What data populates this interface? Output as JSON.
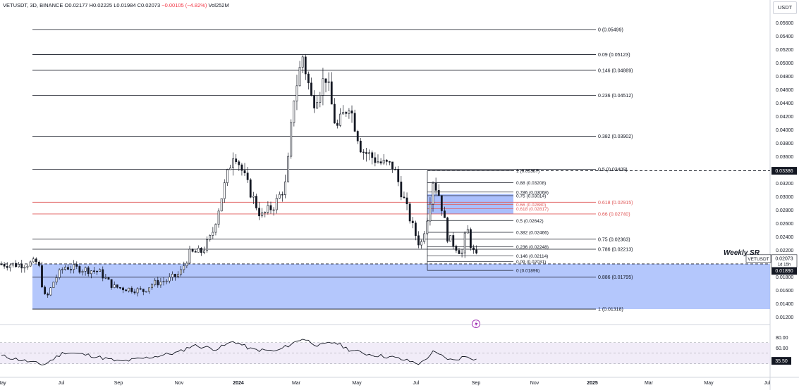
{
  "header": {
    "symbol": "VETUSDT, 3D, BINANCE",
    "open": "O0.02177",
    "high": "H0.02225",
    "low": "L0.01984",
    "close": "C0.02073",
    "change": "−0.00105 (−4.82%)",
    "volume": "Vol252M"
  },
  "axis_unit": "USDT",
  "colors": {
    "up": "#131722",
    "down": "#131722",
    "zone": "#9bb4fb",
    "fib_red": "#e05a5a",
    "rsi_line": "#131722",
    "rsi_band": "#ede7f6"
  },
  "icons": {
    "flash": "lightning-icon"
  },
  "chart_data": [
    {
      "type": "candlestick",
      "title": "",
      "x_ticks": [
        "May",
        "Jul",
        "Sep",
        "Nov",
        "2024",
        "Mar",
        "May",
        "Jul",
        "Sep",
        "Nov",
        "2025",
        "Mar",
        "May",
        "Jul"
      ],
      "y_ticks": [
        "0.05600",
        "0.05400",
        "0.05200",
        "0.05000",
        "0.04800",
        "0.04600",
        "0.04400",
        "0.04200",
        "0.04000",
        "0.03800",
        "0.03600",
        "0.03200",
        "0.03000",
        "0.02800",
        "0.02600",
        "0.02400",
        "0.02200",
        "0.02000",
        "0.01800",
        "0.01600",
        "0.01400",
        "0.01200"
      ],
      "ylim": [
        0.0115,
        0.0575
      ],
      "price_tags": {
        "last": {
          "label": "VETUSDT",
          "value": "0.02073",
          "countdown": "1d 15h"
        },
        "markers": [
          "0.03386",
          "0.01993",
          "0.01890"
        ]
      },
      "annotation_text": "Weekly SR",
      "series": [
        {
          "name": "price",
          "anchors": [
            [
              "2023-05-01",
              0.0199
            ],
            [
              "2023-05-20",
              0.0198
            ],
            [
              "2023-06-08",
              0.0202
            ],
            [
              "2023-06-12",
              0.0169
            ],
            [
              "2023-06-16",
              0.0145
            ],
            [
              "2023-06-25",
              0.0176
            ],
            [
              "2023-07-05",
              0.0195
            ],
            [
              "2023-07-22",
              0.0192
            ],
            [
              "2023-08-10",
              0.0188
            ],
            [
              "2023-08-25",
              0.0165
            ],
            [
              "2023-09-10",
              0.0162
            ],
            [
              "2023-09-25",
              0.0159
            ],
            [
              "2023-10-05",
              0.017
            ],
            [
              "2023-10-20",
              0.0175
            ],
            [
              "2023-11-02",
              0.0185
            ],
            [
              "2023-11-12",
              0.0215
            ],
            [
              "2023-11-25",
              0.0218
            ],
            [
              "2023-12-05",
              0.0242
            ],
            [
              "2023-12-15",
              0.03
            ],
            [
              "2023-12-28",
              0.037
            ],
            [
              "2024-01-10",
              0.032
            ],
            [
              "2024-01-25",
              0.027
            ],
            [
              "2024-02-08",
              0.0288
            ],
            [
              "2024-02-20",
              0.032
            ],
            [
              "2024-02-28",
              0.045
            ],
            [
              "2024-03-08",
              0.051
            ],
            [
              "2024-03-18",
              0.044
            ],
            [
              "2024-04-01",
              0.048
            ],
            [
              "2024-04-12",
              0.04
            ],
            [
              "2024-04-25",
              0.044
            ],
            [
              "2024-05-08",
              0.037
            ],
            [
              "2024-05-28",
              0.035
            ],
            [
              "2024-06-10",
              0.0345
            ],
            [
              "2024-06-22",
              0.029
            ],
            [
              "2024-07-01",
              0.025
            ],
            [
              "2024-07-08",
              0.0225
            ],
            [
              "2024-07-15",
              0.027
            ],
            [
              "2024-07-21",
              0.0325
            ],
            [
              "2024-07-28",
              0.03
            ],
            [
              "2024-08-05",
              0.024
            ],
            [
              "2024-08-12",
              0.0228
            ],
            [
              "2024-08-20",
              0.0215
            ],
            [
              "2024-08-25",
              0.0255
            ],
            [
              "2024-08-30",
              0.0222
            ],
            [
              "2024-09-05",
              0.0207
            ]
          ]
        }
      ],
      "zones": [
        {
          "from": 0.01318,
          "to": 0.01993,
          "end": "right-edge"
        },
        {
          "from": 0.0274,
          "to": 0.0304,
          "end": "local"
        }
      ],
      "fib_levels": [
        {
          "label": "0 (0.05499)",
          "value": 0.05499,
          "color": "black"
        },
        {
          "label": "0.09 (0.05123)",
          "value": 0.05123,
          "color": "black"
        },
        {
          "label": "0.146 (0.04889)",
          "value": 0.04889,
          "color": "black"
        },
        {
          "label": "0.236 (0.04512)",
          "value": 0.04512,
          "color": "black"
        },
        {
          "label": "0.382 (0.03902)",
          "value": 0.03902,
          "color": "black"
        },
        {
          "label": "0.5 (0.03409)",
          "value": 0.03409,
          "color": "black"
        },
        {
          "label": "0.618 (0.02915)",
          "value": 0.02915,
          "color": "red"
        },
        {
          "label": "0.66 (0.02740)",
          "value": 0.0274,
          "color": "red"
        },
        {
          "label": "0.75 (0.02363)",
          "value": 0.02363,
          "color": "black"
        },
        {
          "label": "0.786 (0.02213)",
          "value": 0.02213,
          "color": "black"
        },
        {
          "label": "0.886 (0.01795)",
          "value": 0.01795,
          "color": "black"
        },
        {
          "label": "1 (0.01318)",
          "value": 0.01318,
          "color": "black"
        }
      ],
      "fib_local": [
        {
          "label": "1 (0.03387)",
          "value": 0.03387,
          "color": "black"
        },
        {
          "label": "0.88 (0.03208)",
          "value": 0.03208,
          "color": "black"
        },
        {
          "label": "0.786 (0.03068)",
          "value": 0.03068,
          "color": "black"
        },
        {
          "label": "0.75 (0.03014)",
          "value": 0.03014,
          "color": "black"
        },
        {
          "label": "0.66 (0.02880)",
          "value": 0.0288,
          "color": "red"
        },
        {
          "label": "0.618 (0.02817)",
          "value": 0.02817,
          "color": "red"
        },
        {
          "label": "0.5 (0.02642)",
          "value": 0.02642,
          "color": "black"
        },
        {
          "label": "0.382 (0.02466)",
          "value": 0.02466,
          "color": "black"
        },
        {
          "label": "0.236 (0.02248)",
          "value": 0.02248,
          "color": "black"
        },
        {
          "label": "0.146 (0.02114)",
          "value": 0.02114,
          "color": "black"
        },
        {
          "label": "0.09 (0.02031)",
          "value": 0.02031,
          "color": "black"
        },
        {
          "label": "0 (0.01896)",
          "value": 0.01896,
          "color": "black"
        }
      ]
    },
    {
      "type": "line",
      "title": "",
      "y_ticks": [
        "80.00",
        "60.00",
        "40.00"
      ],
      "current_value": "35.50",
      "band": [
        30,
        70
      ],
      "ylim": [
        15,
        95
      ],
      "series": [
        {
          "name": "",
          "anchors": [
            [
              "2023-05-01",
              45
            ],
            [
              "2023-06-14",
              28
            ],
            [
              "2023-07-05",
              52
            ],
            [
              "2023-08-01",
              46
            ],
            [
              "2023-09-01",
              34
            ],
            [
              "2023-10-01",
              42
            ],
            [
              "2023-11-01",
              52
            ],
            [
              "2023-11-15",
              65
            ],
            [
              "2023-12-10",
              58
            ],
            [
              "2023-12-28",
              73
            ],
            [
              "2024-01-15",
              57
            ],
            [
              "2024-02-10",
              54
            ],
            [
              "2024-03-08",
              78
            ],
            [
              "2024-03-25",
              64
            ],
            [
              "2024-04-10",
              71
            ],
            [
              "2024-04-25",
              57
            ],
            [
              "2024-05-15",
              48
            ],
            [
              "2024-06-10",
              42
            ],
            [
              "2024-07-08",
              30
            ],
            [
              "2024-07-21",
              52
            ],
            [
              "2024-08-10",
              36
            ],
            [
              "2024-08-25",
              45
            ],
            [
              "2024-09-05",
              37
            ]
          ]
        }
      ]
    }
  ]
}
